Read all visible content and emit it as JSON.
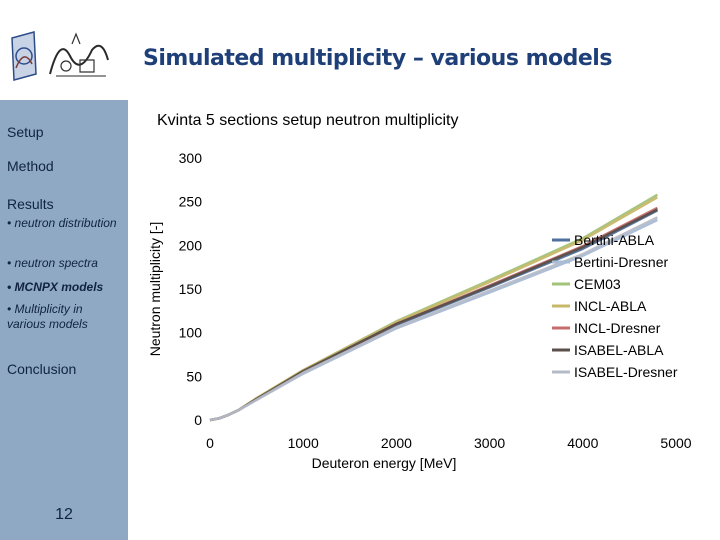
{
  "slide": {
    "title": "Simulated multiplicity – various models",
    "page_number": "12"
  },
  "sidebar": {
    "setup": "Setup",
    "method": "Method",
    "results": "Results",
    "sub_neutron_distribution": "• neutron distribution",
    "sub_neutron_spectra": "• neutron spectra",
    "sub_mcnpx_models": "• MCNPX models",
    "sub_multiplicity": "• Multiplicity in various models",
    "conclusion": "Conclusion"
  },
  "colors": {
    "sidebar": "#8fa9c5",
    "title": "#1f3f78"
  },
  "chart_data": {
    "type": "line",
    "title": "Kvinta 5 sections setup neutron multiplicity",
    "xlabel": "Deuteron energy [MeV]",
    "ylabel": "Neutron multiplicity [-]",
    "xlim": [
      0,
      5000
    ],
    "ylim": [
      0,
      300
    ],
    "xticks": [
      "0",
      "1000",
      "2000",
      "3000",
      "4000",
      "5000"
    ],
    "yticks": [
      "0",
      "50",
      "100",
      "150",
      "200",
      "250",
      "300"
    ],
    "grid": false,
    "legend_position": "right",
    "series": [
      {
        "name": "Bertini-ABLA",
        "color": "#4f6f9f",
        "x": [
          0,
          100,
          200,
          300,
          500,
          1000,
          2000,
          3000,
          4000,
          4800
        ],
        "y": [
          0,
          2,
          6,
          11,
          24,
          55,
          109,
          152,
          196,
          240
        ]
      },
      {
        "name": "Bertini-Dresner",
        "color": "#a9bcd6",
        "x": [
          0,
          100,
          200,
          300,
          500,
          1000,
          2000,
          3000,
          4000,
          4800
        ],
        "y": [
          0,
          2,
          6,
          11,
          23,
          53,
          105,
          146,
          188,
          229
        ]
      },
      {
        "name": "CEM03",
        "color": "#a3c27a",
        "x": [
          0,
          100,
          200,
          300,
          500,
          1000,
          2000,
          3000,
          4000,
          4800
        ],
        "y": [
          0,
          2,
          6,
          11,
          25,
          57,
          113,
          160,
          208,
          258
        ]
      },
      {
        "name": "INCL-ABLA",
        "color": "#c8b86a",
        "x": [
          0,
          100,
          200,
          300,
          500,
          1000,
          2000,
          3000,
          4000,
          4800
        ],
        "y": [
          0,
          2,
          6,
          11,
          25,
          57,
          112,
          158,
          206,
          255
        ]
      },
      {
        "name": "INCL-Dresner",
        "color": "#c76b6b",
        "x": [
          0,
          100,
          200,
          300,
          500,
          1000,
          2000,
          3000,
          4000,
          4800
        ],
        "y": [
          0,
          2,
          6,
          11,
          24,
          55,
          110,
          154,
          199,
          243
        ]
      },
      {
        "name": "ISABEL-ABLA",
        "color": "#5a4f49",
        "x": [
          0,
          100,
          200,
          300,
          500,
          1000,
          2000,
          3000,
          4000,
          4800
        ],
        "y": [
          0,
          2,
          6,
          11,
          24,
          56,
          110,
          153,
          198,
          241
        ]
      },
      {
        "name": "ISABEL-Dresner",
        "color": "#b5bcc8",
        "x": [
          0,
          100,
          200,
          300,
          500,
          1000,
          2000,
          3000,
          4000,
          4800
        ],
        "y": [
          0,
          2,
          6,
          11,
          23,
          54,
          106,
          148,
          190,
          232
        ]
      }
    ]
  }
}
